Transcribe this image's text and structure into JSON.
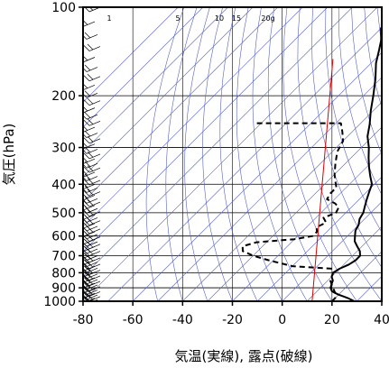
{
  "chart_data": {
    "type": "line",
    "title": "",
    "xlabel": "気温(実線), 露点(破線)",
    "ylabel": "気圧(hPa)",
    "xlim": [
      -80,
      40
    ],
    "ylim": [
      1000,
      100
    ],
    "y_scale": "log",
    "x_ticks": [
      -80,
      -60,
      -40,
      -20,
      0,
      20,
      40
    ],
    "y_ticks": [
      100,
      200,
      300,
      400,
      500,
      600,
      700,
      800,
      900,
      1000
    ],
    "x_tick_labels": [
      "-80",
      "-60",
      "-40",
      "-20",
      "0",
      "20",
      "40"
    ],
    "y_tick_labels": [
      "100",
      "200",
      "300",
      "400",
      "500",
      "600",
      "700",
      "800",
      "900",
      "1000"
    ],
    "grid": true,
    "mixing_ratio_labels": [
      "1",
      "5",
      "10",
      "15",
      "20g"
    ],
    "series": [
      {
        "role": "temperature",
        "color": "#000000",
        "style": "solid",
        "points": [
          [
            29,
            1000
          ],
          [
            25,
            975
          ],
          [
            20,
            950
          ],
          [
            16,
            925
          ],
          [
            14,
            900
          ],
          [
            13,
            875
          ],
          [
            12,
            850
          ],
          [
            10,
            825
          ],
          [
            9,
            800
          ],
          [
            10,
            775
          ],
          [
            12,
            750
          ],
          [
            13,
            725
          ],
          [
            13,
            700
          ],
          [
            11,
            675
          ],
          [
            8,
            650
          ],
          [
            5,
            625
          ],
          [
            3,
            600
          ],
          [
            1,
            575
          ],
          [
            0,
            550
          ],
          [
            -2,
            525
          ],
          [
            -3,
            500
          ],
          [
            -5,
            475
          ],
          [
            -7,
            450
          ],
          [
            -9,
            425
          ],
          [
            -11,
            400
          ],
          [
            -15,
            375
          ],
          [
            -19,
            350
          ],
          [
            -23,
            325
          ],
          [
            -27,
            300
          ],
          [
            -32,
            275
          ],
          [
            -36,
            250
          ],
          [
            -41,
            225
          ],
          [
            -46,
            200
          ],
          [
            -52,
            175
          ],
          [
            -58,
            155
          ],
          [
            -62,
            140
          ],
          [
            -65,
            130
          ],
          [
            -67,
            125
          ],
          [
            -70,
            118
          ],
          [
            -71,
            110
          ],
          [
            -72,
            105
          ],
          [
            -72,
            100
          ]
        ]
      },
      {
        "role": "dewpoint",
        "color": "#000000",
        "style": "dashed",
        "points": [
          [
            20,
            1000
          ],
          [
            20,
            975
          ],
          [
            19,
            950
          ],
          [
            17,
            925
          ],
          [
            15,
            900
          ],
          [
            13,
            875
          ],
          [
            11,
            850
          ],
          [
            10,
            825
          ],
          [
            9,
            800
          ],
          [
            7,
            775
          ],
          [
            -10,
            760
          ],
          [
            -22,
            725
          ],
          [
            -30,
            700
          ],
          [
            -36,
            675
          ],
          [
            -38,
            650
          ],
          [
            -34,
            630
          ],
          [
            -20,
            615
          ],
          [
            -14,
            600
          ],
          [
            -14,
            580
          ],
          [
            -16,
            560
          ],
          [
            -14,
            540
          ],
          [
            -17,
            520
          ],
          [
            -14,
            500
          ],
          [
            -15,
            480
          ],
          [
            -18,
            465
          ],
          [
            -23,
            450
          ],
          [
            -24,
            430
          ],
          [
            -24,
            410
          ],
          [
            -27,
            390
          ],
          [
            -30,
            370
          ],
          [
            -34,
            340
          ],
          [
            -38,
            310
          ],
          [
            -40,
            285
          ],
          [
            -44,
            265
          ],
          [
            -48,
            248
          ],
          [
            -82,
            248
          ]
        ]
      },
      {
        "role": "reference-lapse",
        "color": "#dd0000",
        "style": "solid",
        "points": [
          [
            12,
            1000
          ],
          [
            -77,
            150
          ]
        ]
      }
    ],
    "wind_barbs": true
  }
}
